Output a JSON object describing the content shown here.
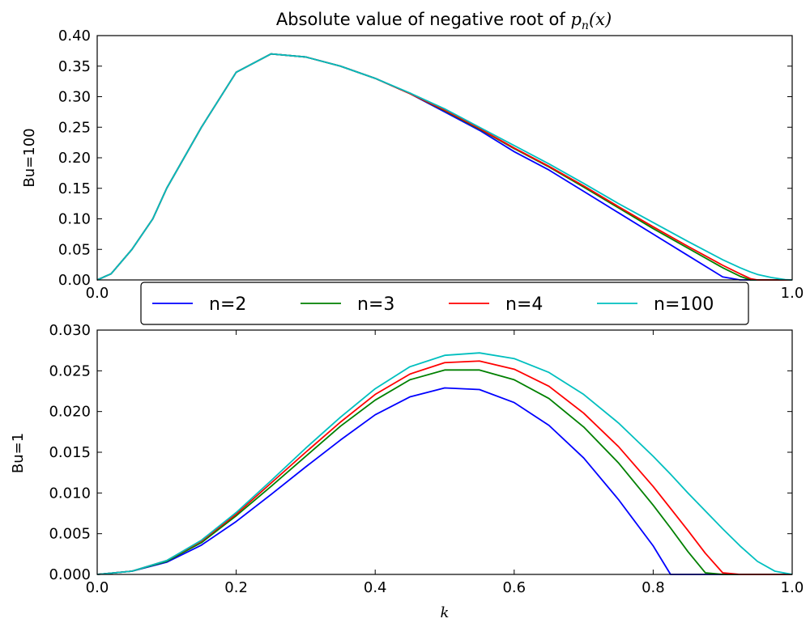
{
  "chart_data": [
    {
      "type": "line",
      "title": {
        "prefix": "Absolute value of negative root of ",
        "math": "p",
        "math_sub": "n",
        "math_suffix": "(x)"
      },
      "xlabel": "",
      "ylabel": "Bu=100",
      "xlim": [
        0.0,
        1.0
      ],
      "ylim": [
        0.0,
        0.4
      ],
      "xticks": [
        "0.0",
        "1.0"
      ],
      "yticks": [
        "0.00",
        "0.05",
        "0.10",
        "0.15",
        "0.20",
        "0.25",
        "0.30",
        "0.35",
        "0.40"
      ],
      "grid": false,
      "x": [
        0.0,
        0.02,
        0.05,
        0.08,
        0.1,
        0.15,
        0.2,
        0.25,
        0.3,
        0.35,
        0.4,
        0.45,
        0.5,
        0.55,
        0.6,
        0.65,
        0.7,
        0.75,
        0.8,
        0.85,
        0.9,
        0.925,
        0.94,
        0.95,
        0.97,
        0.99,
        1.0
      ],
      "series": [
        {
          "name": "n=2",
          "color": "#0000ff",
          "values": [
            0.0,
            0.01,
            0.05,
            0.1,
            0.15,
            0.25,
            0.34,
            0.37,
            0.365,
            0.35,
            0.33,
            0.305,
            0.275,
            0.245,
            0.21,
            0.18,
            0.145,
            0.11,
            0.075,
            0.04,
            0.005,
            0.0,
            0.0,
            0.0,
            0.0,
            0.0,
            0.0
          ]
        },
        {
          "name": "n=3",
          "color": "#008000",
          "values": [
            0.0,
            0.01,
            0.05,
            0.1,
            0.15,
            0.25,
            0.34,
            0.37,
            0.365,
            0.35,
            0.33,
            0.305,
            0.277,
            0.247,
            0.215,
            0.185,
            0.152,
            0.118,
            0.084,
            0.052,
            0.02,
            0.006,
            0.0,
            0.0,
            0.0,
            0.0,
            0.0
          ]
        },
        {
          "name": "n=4",
          "color": "#ff0000",
          "values": [
            0.0,
            0.01,
            0.05,
            0.1,
            0.15,
            0.25,
            0.34,
            0.37,
            0.365,
            0.35,
            0.33,
            0.305,
            0.278,
            0.248,
            0.216,
            0.186,
            0.154,
            0.12,
            0.087,
            0.055,
            0.024,
            0.01,
            0.002,
            0.0,
            0.0,
            0.0,
            0.0
          ]
        },
        {
          "name": "n=100",
          "color": "#00bfbf",
          "values": [
            0.0,
            0.01,
            0.05,
            0.1,
            0.15,
            0.25,
            0.34,
            0.37,
            0.365,
            0.35,
            0.33,
            0.306,
            0.28,
            0.25,
            0.22,
            0.19,
            0.158,
            0.125,
            0.094,
            0.063,
            0.033,
            0.02,
            0.013,
            0.009,
            0.004,
            0.0005,
            0.0
          ]
        }
      ]
    },
    {
      "type": "line",
      "title": "",
      "xlabel": "k",
      "ylabel": "Bu=1",
      "xlim": [
        0.0,
        1.0
      ],
      "ylim": [
        0.0,
        0.03
      ],
      "xticks": [
        "0.0",
        "0.2",
        "0.4",
        "0.6",
        "0.8",
        "1.0"
      ],
      "yticks": [
        "0.000",
        "0.005",
        "0.010",
        "0.015",
        "0.020",
        "0.025",
        "0.030"
      ],
      "grid": false,
      "x": [
        0.0,
        0.05,
        0.1,
        0.15,
        0.2,
        0.25,
        0.3,
        0.35,
        0.4,
        0.45,
        0.5,
        0.55,
        0.6,
        0.65,
        0.7,
        0.75,
        0.8,
        0.825,
        0.85,
        0.875,
        0.9,
        0.925,
        0.95,
        0.975,
        1.0
      ],
      "series": [
        {
          "name": "n=2",
          "color": "#0000ff",
          "values": [
            0.0,
            0.0004,
            0.0015,
            0.0036,
            0.0065,
            0.0098,
            0.0132,
            0.0165,
            0.0196,
            0.0218,
            0.0229,
            0.0227,
            0.0211,
            0.0183,
            0.0143,
            0.0092,
            0.0035,
            0.0,
            0.0,
            0.0,
            0.0,
            0.0,
            0.0,
            0.0,
            0.0
          ]
        },
        {
          "name": "n=3",
          "color": "#008000",
          "values": [
            0.0,
            0.0004,
            0.0016,
            0.0039,
            0.0072,
            0.0108,
            0.0145,
            0.0182,
            0.0214,
            0.0239,
            0.0251,
            0.0251,
            0.0239,
            0.0216,
            0.0181,
            0.0137,
            0.0085,
            0.0057,
            0.0028,
            0.0002,
            0.0,
            0.0,
            0.0,
            0.0,
            0.0
          ]
        },
        {
          "name": "n=4",
          "color": "#ff0000",
          "values": [
            0.0,
            0.0004,
            0.0017,
            0.0041,
            0.0074,
            0.0112,
            0.015,
            0.0187,
            0.0221,
            0.0246,
            0.026,
            0.0262,
            0.0252,
            0.0231,
            0.0198,
            0.0157,
            0.0108,
            0.0081,
            0.0054,
            0.0026,
            0.0002,
            0.0,
            0.0,
            0.0,
            0.0
          ]
        },
        {
          "name": "n=100",
          "color": "#00bfbf",
          "values": [
            0.0,
            0.0004,
            0.0017,
            0.0042,
            0.0076,
            0.0115,
            0.0155,
            0.0193,
            0.0228,
            0.0255,
            0.0269,
            0.0272,
            0.0265,
            0.0248,
            0.0221,
            0.0186,
            0.0145,
            0.0123,
            0.01,
            0.0078,
            0.0056,
            0.0035,
            0.0016,
            0.0004,
            0.0
          ]
        }
      ]
    }
  ],
  "legend": {
    "placement": "between-plots",
    "entries": [
      "n=2",
      "n=3",
      "n=4",
      "n=100"
    ],
    "colors": [
      "#0000ff",
      "#008000",
      "#ff0000",
      "#00bfbf"
    ]
  }
}
